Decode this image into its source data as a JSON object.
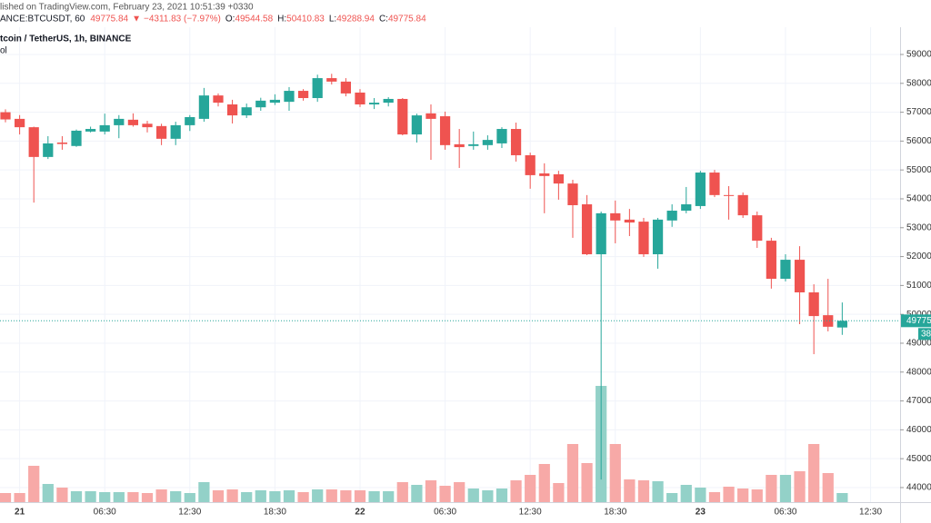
{
  "chart_data": {
    "type": "candlestick",
    "published": "lished on TradingView.com, February 23, 2021 10:51:39 +0330",
    "symbol": "ANCE:BTCUSDT, 60",
    "arrow": "▼",
    "change": "−4311.83 (−7.97%)",
    "ohlc_labels": [
      "O:",
      "H:",
      "L:",
      "C:"
    ],
    "title": "tcoin / TetherUS, 1h, BINANCE",
    "volume_label": "ol",
    "countdown": "38:",
    "up_color": "#26a69a",
    "down_color": "#ef5350",
    "volume_up_color": "#93d1c8",
    "volume_down_color": "#f7a9a7",
    "grid": true,
    "open": [
      57000,
      56770,
      56480,
      55450,
      55950,
      55830,
      56330,
      56330,
      56550,
      56740,
      56600,
      56520,
      56080,
      56550,
      56770,
      57580,
      57270,
      56890,
      57170,
      57330,
      57360,
      57740,
      57490,
      58180,
      58060,
      57680,
      57270,
      57330,
      57460,
      56230,
      56960,
      56860,
      55890,
      55830,
      55860,
      55920,
      56420,
      55510,
      54880,
      54850,
      54530,
      53810,
      52080,
      53500,
      53280,
      53210,
      52080,
      53250,
      53590,
      53750,
      54910,
      54130,
      54130,
      53430,
      52550,
      51230,
      51890,
      50760,
      49970,
      49544.58
    ],
    "high": [
      57100,
      56900,
      56500,
      56170,
      56170,
      56400,
      56500,
      56950,
      56900,
      56960,
      56700,
      56600,
      56670,
      56900,
      57840,
      57650,
      57430,
      57300,
      57500,
      57620,
      57870,
      57800,
      58300,
      58330,
      58180,
      57800,
      57490,
      57520,
      57490,
      56950,
      57270,
      57020,
      56420,
      56330,
      56200,
      56480,
      56640,
      55600,
      55230,
      54970,
      54660,
      54130,
      53560,
      53940,
      53650,
      53340,
      53340,
      53810,
      54410,
      54970,
      55000,
      54440,
      54220,
      53560,
      52650,
      52080,
      52360,
      51040,
      51230,
      50410.83
    ],
    "low": [
      56650,
      56230,
      53870,
      55380,
      55700,
      55800,
      56300,
      56230,
      56100,
      56500,
      56300,
      55860,
      55860,
      56350,
      56670,
      57200,
      56610,
      56800,
      57050,
      57250,
      57050,
      57400,
      57360,
      57960,
      57550,
      57180,
      57110,
      57200,
      56200,
      55950,
      55350,
      55700,
      55070,
      55700,
      55700,
      55760,
      55290,
      54350,
      53500,
      53970,
      52650,
      52050,
      44280,
      52460,
      52710,
      51990,
      51580,
      53030,
      53500,
      53650,
      54060,
      53280,
      53340,
      52300,
      50890,
      51140,
      49660,
      48620,
      49410,
      49288.94
    ],
    "close": [
      56750,
      56480,
      55450,
      55920,
      55900,
      56360,
      56420,
      56550,
      56770,
      56550,
      56480,
      56080,
      56550,
      56830,
      57580,
      57330,
      56890,
      57170,
      57400,
      57430,
      57740,
      57490,
      58180,
      58060,
      57650,
      57270,
      57330,
      57460,
      56230,
      56890,
      56770,
      55860,
      55790,
      55890,
      56040,
      56420,
      55510,
      54820,
      54790,
      54530,
      53780,
      52080,
      53500,
      53250,
      53180,
      52080,
      53280,
      53590,
      53810,
      54910,
      54130,
      54100,
      53430,
      52550,
      51230,
      51890,
      50760,
      49940,
      49570,
      49775.84
    ],
    "volume": [
      10,
      10,
      40,
      20,
      16,
      12,
      12,
      11,
      11,
      11,
      10,
      14,
      12,
      10,
      22,
      13,
      14,
      11,
      13,
      12,
      13,
      11,
      14,
      14,
      13,
      13,
      12,
      12,
      22,
      19,
      24,
      18,
      22,
      15,
      13,
      15,
      24,
      30,
      42,
      21,
      64,
      43,
      128,
      64,
      25,
      24,
      23,
      10,
      19,
      16,
      11,
      17,
      15,
      14,
      30,
      30,
      34,
      64,
      32,
      10
    ],
    "volume_lim": [
      0,
      523
    ],
    "xlim": [
      -0.385,
      63.08
    ],
    "xticks": [
      {
        "value": 1,
        "label": "21"
      },
      {
        "value": 7,
        "label": "06:30"
      },
      {
        "value": 13,
        "label": "12:30"
      },
      {
        "value": 19,
        "label": "18:30"
      },
      {
        "value": 25,
        "label": "22"
      },
      {
        "value": 31,
        "label": "06:30"
      },
      {
        "value": 37,
        "label": "12:30"
      },
      {
        "value": 43,
        "label": "18:30"
      },
      {
        "value": 49,
        "label": "23"
      },
      {
        "value": 55,
        "label": "06:30"
      },
      {
        "value": 61,
        "label": "12:30"
      }
    ],
    "ylim": [
      43496,
      59943
    ],
    "yticks": [
      {
        "value": 44000,
        "label": "44000.00"
      },
      {
        "value": 45000,
        "label": "45000.00"
      },
      {
        "value": 46000,
        "label": "46000.00"
      },
      {
        "value": 47000,
        "label": "47000.00"
      },
      {
        "value": 48000,
        "label": "48000.00"
      },
      {
        "value": 49000,
        "label": "49000.00"
      },
      {
        "value": 50000,
        "label": "50000.00"
      },
      {
        "value": 51000,
        "label": "51000.00"
      },
      {
        "value": 52000,
        "label": "52000.00"
      },
      {
        "value": 53000,
        "label": "53000.00"
      },
      {
        "value": 54000,
        "label": "54000.00"
      },
      {
        "value": 55000,
        "label": "55000.00"
      },
      {
        "value": 56000,
        "label": "56000.00"
      },
      {
        "value": 57000,
        "label": "57000.00"
      },
      {
        "value": 58000,
        "label": "58000.00"
      },
      {
        "value": 59000,
        "label": "59000.00"
      }
    ]
  }
}
